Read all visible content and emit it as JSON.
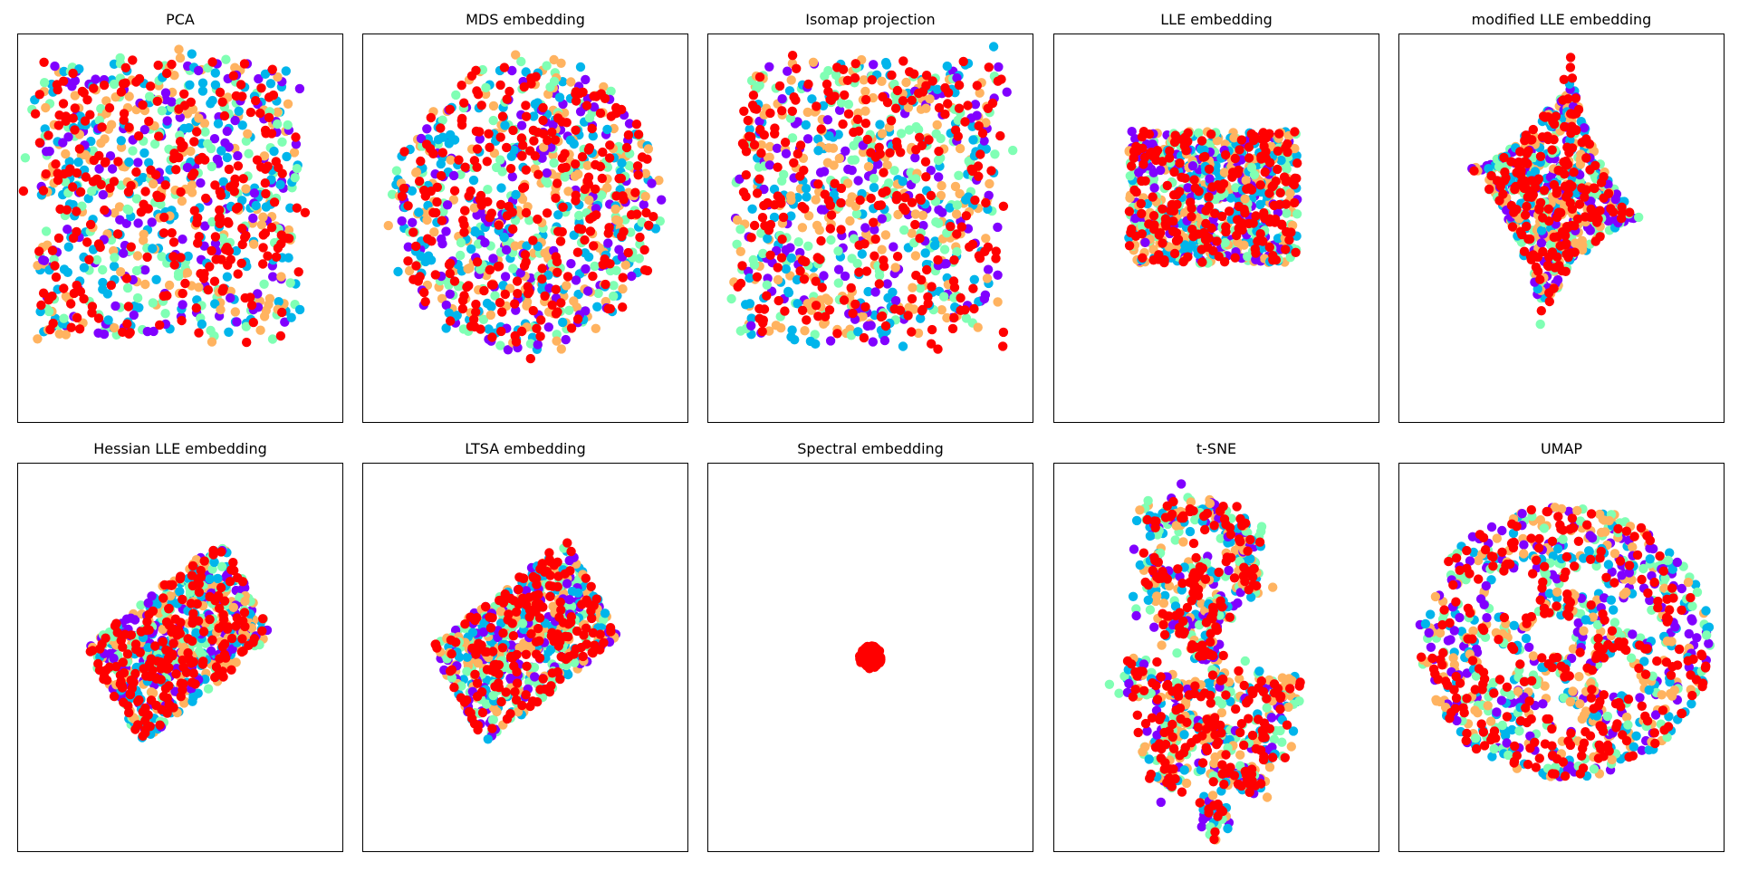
{
  "figure": {
    "layout": "2 rows x 5 columns of 2-D scatter plots, no axis ticks",
    "point_colors": [
      "#8000ff",
      "#00b5eb",
      "#80ffb4",
      "#ffb360",
      "#ff0000"
    ]
  },
  "chart_data": [
    {
      "type": "scatter",
      "title": "PCA",
      "xlabel": "",
      "ylabel": "",
      "grid": false,
      "axis_ticks": false,
      "xlim": [
        0,
        100
      ],
      "ylim": [
        0,
        100
      ],
      "shape": "square_cloud",
      "center": [
        46,
        58
      ],
      "radius": [
        42,
        37
      ],
      "n_points": 900
    },
    {
      "type": "scatter",
      "title": "MDS embedding",
      "xlabel": "",
      "ylabel": "",
      "grid": false,
      "axis_ticks": false,
      "xlim": [
        0,
        100
      ],
      "ylim": [
        0,
        100
      ],
      "shape": "round_cloud",
      "center": [
        50,
        56
      ],
      "radius": [
        43,
        37
      ],
      "n_points": 900
    },
    {
      "type": "scatter",
      "title": "Isomap projection",
      "xlabel": "",
      "ylabel": "",
      "grid": false,
      "axis_ticks": false,
      "xlim": [
        0,
        100
      ],
      "ylim": [
        0,
        100
      ],
      "shape": "square_cloud",
      "center": [
        50,
        57
      ],
      "radius": [
        42,
        37
      ],
      "n_points": 900
    },
    {
      "type": "scatter",
      "title": "LLE embedding",
      "xlabel": "",
      "ylabel": "",
      "grid": false,
      "axis_ticks": false,
      "xlim": [
        0,
        100
      ],
      "ylim": [
        0,
        100
      ],
      "shape": "rectangle",
      "center": [
        49,
        58
      ],
      "radius": [
        26,
        17
      ],
      "n_points": 800
    },
    {
      "type": "scatter",
      "title": "modified LLE embedding",
      "xlabel": "",
      "ylabel": "",
      "grid": false,
      "axis_ticks": false,
      "xlim": [
        0,
        100
      ],
      "ylim": [
        0,
        100
      ],
      "shape": "star",
      "center": [
        48,
        59
      ],
      "radius": [
        18,
        16
      ],
      "n_points": 700
    },
    {
      "type": "scatter",
      "title": "Hessian LLE embedding",
      "xlabel": "",
      "ylabel": "",
      "grid": false,
      "axis_ticks": false,
      "xlim": [
        0,
        100
      ],
      "ylim": [
        0,
        100
      ],
      "shape": "tilted_rectangle",
      "center": [
        50,
        54
      ],
      "radius": [
        25,
        15
      ],
      "angle": 34,
      "n_points": 700
    },
    {
      "type": "scatter",
      "title": "LTSA embedding",
      "xlabel": "",
      "ylabel": "",
      "grid": false,
      "axis_ticks": false,
      "xlim": [
        0,
        100
      ],
      "ylim": [
        0,
        100
      ],
      "shape": "tilted_rectangle",
      "center": [
        50,
        54
      ],
      "radius": [
        25,
        15
      ],
      "angle": 34,
      "n_points": 700
    },
    {
      "type": "scatter",
      "title": "Spectral embedding",
      "xlabel": "",
      "ylabel": "",
      "grid": false,
      "axis_ticks": false,
      "xlim": [
        0,
        100
      ],
      "ylim": [
        0,
        100
      ],
      "shape": "dot_cluster",
      "center": [
        50,
        50
      ],
      "radius": [
        2,
        2
      ],
      "n_points": 120
    },
    {
      "type": "scatter",
      "title": "t-SNE",
      "xlabel": "",
      "ylabel": "",
      "grid": false,
      "axis_ticks": false,
      "xlim": [
        0,
        100
      ],
      "ylim": [
        0,
        100
      ],
      "shape": "clustered_blobs",
      "n_points": 1000
    },
    {
      "type": "scatter",
      "title": "UMAP",
      "xlabel": "",
      "ylabel": "",
      "grid": false,
      "axis_ticks": false,
      "xlim": [
        0,
        100
      ],
      "ylim": [
        0,
        100
      ],
      "shape": "ring_with_holes",
      "center": [
        51,
        54
      ],
      "radius": [
        45,
        35
      ],
      "n_points": 1000
    }
  ]
}
